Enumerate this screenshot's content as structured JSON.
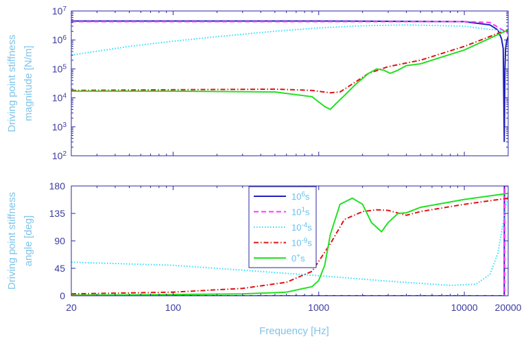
{
  "colors": {
    "axis": "#2626a6",
    "title": "#7fc4ea",
    "tick": "#3a3aa0",
    "s_1e6": "#1f1fc0",
    "s_1e1": "#ff33ff",
    "s_1em4": "#33e0ff",
    "s_1em9": "#e01010",
    "s_0": "#22e022"
  },
  "chart_data": [
    {
      "type": "line",
      "xlabel": "",
      "ylabel_lines": [
        "Driving point stiffness",
        "magnitude [N/m]"
      ],
      "xscale": "log",
      "yscale": "log",
      "xlim": [
        20,
        20000
      ],
      "ylim": [
        100,
        10000000
      ],
      "yticks": [
        {
          "base": "10",
          "exp": "2"
        },
        {
          "base": "10",
          "exp": "3"
        },
        {
          "base": "10",
          "exp": "4"
        },
        {
          "base": "10",
          "exp": "5"
        },
        {
          "base": "10",
          "exp": "6"
        },
        {
          "base": "10",
          "exp": "7"
        }
      ],
      "series": [
        {
          "key": "s_1e6",
          "style": "solid",
          "x": [
            20,
            1000,
            10000,
            15000,
            17000,
            18000,
            18500,
            18800,
            19000,
            19200,
            19500,
            20000
          ],
          "y": [
            4500000,
            4500000,
            4300000,
            3300000,
            2200000,
            1100000,
            500000,
            300,
            100000,
            500000,
            900000,
            1300000
          ]
        },
        {
          "key": "s_1e1",
          "style": "dashed",
          "x": [
            20,
            10000,
            15000,
            20000
          ],
          "y": [
            4300000,
            4300000,
            4000000,
            1700000
          ]
        },
        {
          "key": "s_1em4",
          "style": "dotted",
          "x": [
            20,
            50,
            100,
            200,
            500,
            1000,
            2000,
            4000,
            10000,
            15000,
            20000
          ],
          "y": [
            300000,
            600000,
            900000,
            1300000,
            2000000,
            2600000,
            3100000,
            3300000,
            3000000,
            2300000,
            2100000
          ]
        },
        {
          "key": "s_1em9",
          "style": "dashdot",
          "x": [
            20,
            100,
            500,
            900,
            1200,
            1400,
            1700,
            2200,
            3000,
            5000,
            10000,
            20000
          ],
          "y": [
            18000,
            19000,
            20000,
            18000,
            15000,
            16000,
            30000,
            70000,
            120000,
            200000,
            600000,
            2300000
          ]
        },
        {
          "key": "s_0",
          "style": "solid",
          "x": [
            20,
            100,
            500,
            900,
            1100,
            1200,
            1300,
            1500,
            1800,
            2200,
            2500,
            2800,
            3100,
            3500,
            4000,
            5000,
            10000,
            20000
          ],
          "y": [
            17000,
            17000,
            16000,
            11000,
            5000,
            4000,
            6000,
            12000,
            30000,
            70000,
            100000,
            90000,
            70000,
            90000,
            130000,
            150000,
            450000,
            2200000
          ]
        }
      ]
    },
    {
      "type": "line",
      "xlabel": "Frequency [Hz]",
      "ylabel_lines": [
        "Driving point stiffness",
        "angle [deg]"
      ],
      "xscale": "log",
      "xlim": [
        20,
        20000
      ],
      "ylim": [
        0,
        180
      ],
      "xticks": [
        "20",
        "100",
        "1000",
        "10000",
        "20000"
      ],
      "yticks": [
        "0",
        "45",
        "90",
        "135",
        "180"
      ],
      "legend": {
        "position": "center",
        "entries": [
          {
            "key": "s_1e6",
            "base": "10",
            "exp": "6",
            "unit": "s"
          },
          {
            "key": "s_1e1",
            "base": "10",
            "exp": "1",
            "unit": "s"
          },
          {
            "key": "s_1em4",
            "base": "10",
            "exp": "-4",
            "unit": "s"
          },
          {
            "key": "s_1em9",
            "base": "10",
            "exp": "-9",
            "unit": "s"
          },
          {
            "key": "s_0",
            "base": "0",
            "exp": "+",
            "unit": "s"
          }
        ]
      },
      "series": [
        {
          "key": "s_1e6",
          "style": "solid",
          "x": [
            20,
            18800,
            18850,
            20000
          ],
          "y": [
            0,
            0,
            180,
            180
          ]
        },
        {
          "key": "s_1e1",
          "style": "dashed",
          "x": [
            20,
            18900,
            18950,
            20000
          ],
          "y": [
            0,
            0,
            180,
            180
          ]
        },
        {
          "key": "s_1em4",
          "style": "dotted",
          "x": [
            20,
            100,
            300,
            1000,
            3000,
            8000,
            12000,
            15000,
            17000,
            18500,
            19500,
            20000
          ],
          "y": [
            55,
            50,
            42,
            33,
            24,
            17,
            19,
            35,
            70,
            120,
            155,
            165
          ]
        },
        {
          "key": "s_1em9",
          "style": "dashdot",
          "x": [
            20,
            100,
            300,
            600,
            900,
            1200,
            1500,
            2000,
            2500,
            3000,
            4000,
            5000,
            10000,
            20000
          ],
          "y": [
            3,
            6,
            12,
            22,
            40,
            85,
            125,
            138,
            141,
            140,
            132,
            138,
            150,
            160
          ]
        },
        {
          "key": "s_0",
          "style": "solid",
          "x": [
            20,
            100,
            300,
            600,
            900,
            1000,
            1100,
            1200,
            1400,
            1700,
            2000,
            2300,
            2700,
            3000,
            3500,
            4000,
            5000,
            10000,
            20000
          ],
          "y": [
            1,
            2,
            3,
            6,
            15,
            25,
            50,
            100,
            150,
            160,
            150,
            120,
            105,
            120,
            135,
            136,
            145,
            158,
            168
          ]
        }
      ]
    }
  ]
}
